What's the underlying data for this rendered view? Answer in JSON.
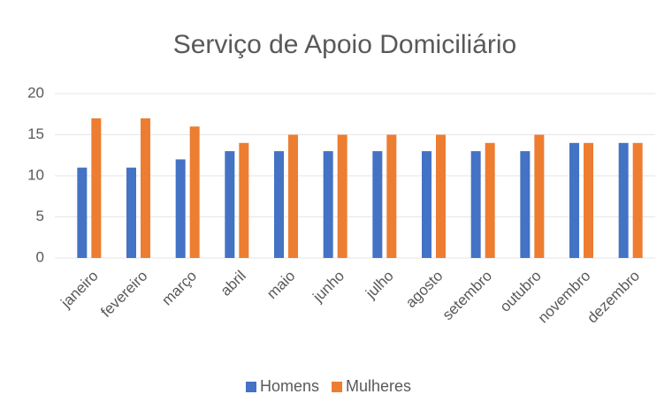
{
  "chart_data": {
    "type": "bar",
    "title": "Serviço de Apoio Domiciliário",
    "categories": [
      "janeiro",
      "fevereiro",
      "março",
      "abril",
      "maio",
      "junho",
      "julho",
      "agosto",
      "setembro",
      "outubro",
      "novembro",
      "dezembro"
    ],
    "series": [
      {
        "name": "Homens",
        "color": "#4472c4",
        "values": [
          11,
          11,
          12,
          13,
          13,
          13,
          13,
          13,
          13,
          13,
          14,
          14
        ]
      },
      {
        "name": "Mulheres",
        "color": "#ed7d31",
        "values": [
          17,
          17,
          16,
          14,
          15,
          15,
          15,
          15,
          14,
          15,
          14,
          14
        ]
      }
    ],
    "ylim": [
      0,
      20
    ],
    "yticks": [
      0,
      5,
      10,
      15,
      20
    ],
    "grid": true,
    "legend": "bottom"
  }
}
